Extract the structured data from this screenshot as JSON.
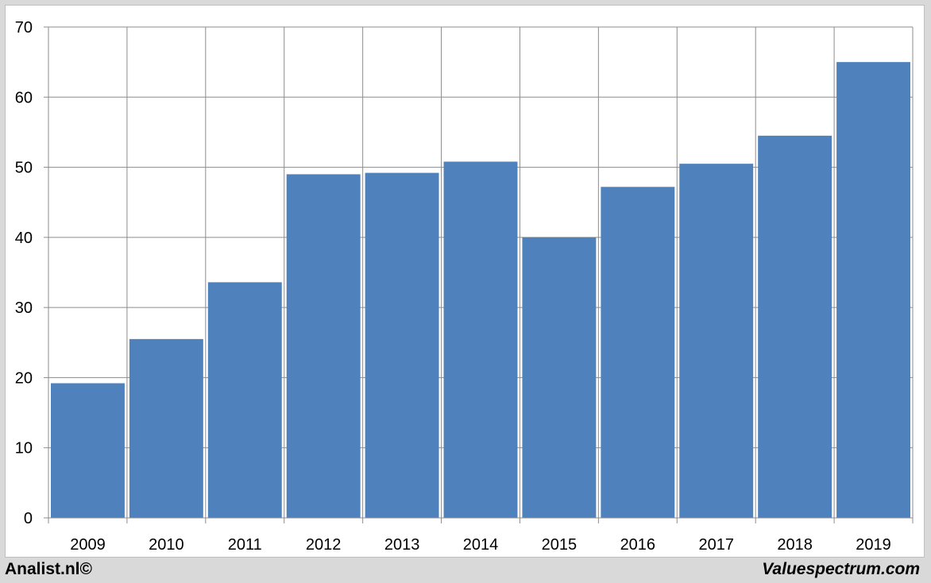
{
  "chart_data": {
    "type": "bar",
    "categories": [
      "2009",
      "2010",
      "2011",
      "2012",
      "2013",
      "2014",
      "2015",
      "2016",
      "2017",
      "2018",
      "2019"
    ],
    "values": [
      19.2,
      25.5,
      33.6,
      49.0,
      49.2,
      50.8,
      40.0,
      47.2,
      50.5,
      54.5,
      65.0
    ],
    "ylim": [
      0,
      70
    ],
    "yticks": [
      0,
      10,
      20,
      30,
      40,
      50,
      60,
      70
    ],
    "grid": true,
    "bar_color": "#4f81bd",
    "grid_color": "#8c8c8c"
  },
  "footer": {
    "left": "Analist.nl©",
    "right": "Valuespectrum.com"
  }
}
